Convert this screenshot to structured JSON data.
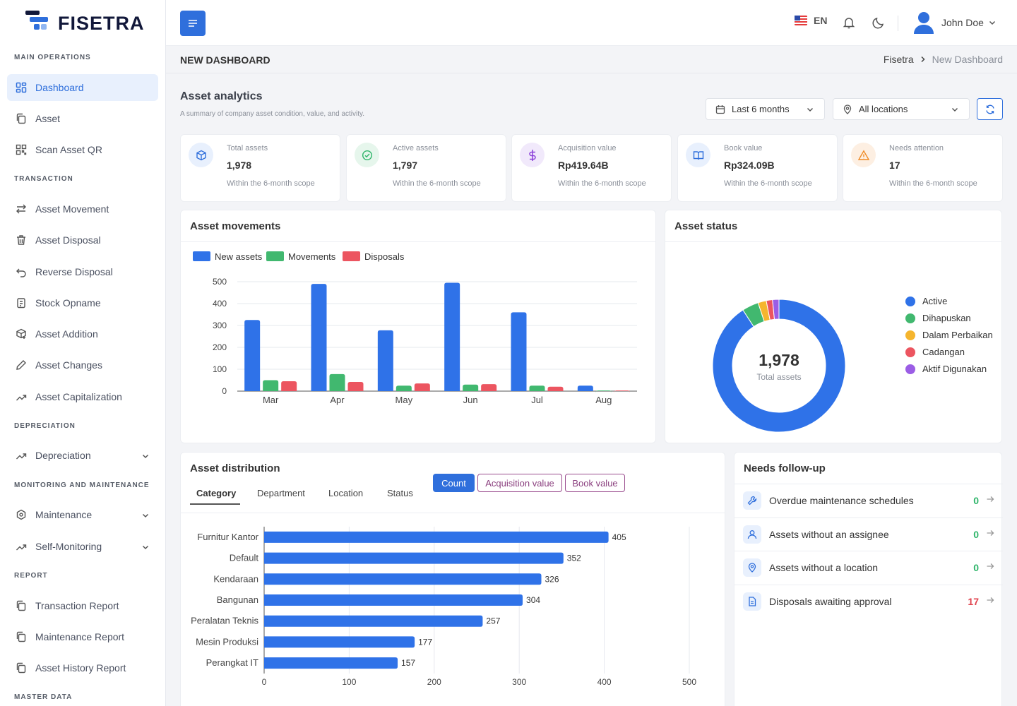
{
  "brand": {
    "name": "FISETRA"
  },
  "sidebar": {
    "sections": [
      {
        "title": "MAIN OPERATIONS"
      },
      {
        "title": "TRANSACTION"
      },
      {
        "title": "DEPRECIATION"
      },
      {
        "title": "MONITORING AND MAINTENANCE"
      },
      {
        "title": "REPORT"
      },
      {
        "title": "MASTER DATA"
      }
    ],
    "items": [
      {
        "label": "Dashboard",
        "icon": "grid-icon"
      },
      {
        "label": "Asset",
        "icon": "copy-icon"
      },
      {
        "label": "Scan Asset QR",
        "icon": "qr-icon"
      },
      {
        "label": "Asset Movement",
        "icon": "arrows-icon"
      },
      {
        "label": "Asset Disposal",
        "icon": "trash-icon"
      },
      {
        "label": "Reverse Disposal",
        "icon": "undo-icon"
      },
      {
        "label": "Stock Opname",
        "icon": "clipboard-icon"
      },
      {
        "label": "Asset Addition",
        "icon": "box-plus-icon"
      },
      {
        "label": "Asset Changes",
        "icon": "pencil-icon"
      },
      {
        "label": "Asset Capitalization",
        "icon": "trend-icon"
      },
      {
        "label": "Depreciation",
        "icon": "trend-icon"
      },
      {
        "label": "Maintenance",
        "icon": "hexagon-icon"
      },
      {
        "label": "Self-Monitoring",
        "icon": "trend-icon"
      },
      {
        "label": "Transaction Report",
        "icon": "copy-icon"
      },
      {
        "label": "Maintenance Report",
        "icon": "copy-icon"
      },
      {
        "label": "Asset History Report",
        "icon": "copy-icon"
      }
    ]
  },
  "topbar": {
    "language": "EN",
    "user_name": "John Doe"
  },
  "page_header": {
    "title": "NEW DASHBOARD",
    "crumb_root": "Fisetra",
    "crumb_current": "New Dashboard"
  },
  "analytics": {
    "title": "Asset analytics",
    "subtitle": "A summary of company asset condition, value, and activity.",
    "period_filter": "Last 6 months",
    "location_filter": "All locations"
  },
  "stats": [
    {
      "label": "Total assets",
      "value": "1,978",
      "sub": "Within the 6-month scope",
      "icon": "cube-icon",
      "color": "#2f6fdc",
      "bg": "#e8f0fd"
    },
    {
      "label": "Active assets",
      "value": "1,797",
      "sub": "Within the 6-month scope",
      "icon": "check-circle-icon",
      "color": "#2fb56a",
      "bg": "#e6f6ec"
    },
    {
      "label": "Acquisition value",
      "value": "Rp419.64B",
      "sub": "Within the 6-month scope",
      "icon": "dollar-icon",
      "color": "#8a3fd9",
      "bg": "#f1e9fb"
    },
    {
      "label": "Book value",
      "value": "Rp324.09B",
      "sub": "Within the 6-month scope",
      "icon": "book-icon",
      "color": "#2f6fdc",
      "bg": "#e8f0fd"
    },
    {
      "label": "Needs attention",
      "value": "17",
      "sub": "Within the 6-month scope",
      "icon": "warning-icon",
      "color": "#f08a24",
      "bg": "#fdefe2"
    }
  ],
  "movements": {
    "title": "Asset movements",
    "chart_data": {
      "type": "bar",
      "categories": [
        "Mar",
        "Apr",
        "May",
        "Jun",
        "Jul",
        "Aug"
      ],
      "series": [
        {
          "name": "New assets",
          "values": [
            325,
            490,
            278,
            495,
            360,
            25
          ],
          "color": "#2f72e8"
        },
        {
          "name": "Movements",
          "values": [
            50,
            78,
            25,
            30,
            25,
            3
          ],
          "color": "#41b86f"
        },
        {
          "name": "Disposals",
          "values": [
            45,
            42,
            35,
            32,
            20,
            3
          ],
          "color": "#ec5560"
        }
      ],
      "ylim": [
        0,
        500
      ],
      "yticks": [
        0,
        100,
        200,
        300,
        400,
        500
      ],
      "legend": "top-left"
    }
  },
  "status": {
    "title": "Asset status",
    "total": "1,978",
    "total_label": "Total assets",
    "chart_data": {
      "type": "pie",
      "labels": [
        "Active",
        "Dihapuskan",
        "Dalam Perbaikan",
        "Cadangan",
        "Aktif Digunakan"
      ],
      "values": [
        1797,
        80,
        40,
        30,
        31
      ],
      "colors": [
        "#2f72e8",
        "#41b86f",
        "#f5b52e",
        "#ec5560",
        "#9b5de5"
      ],
      "legend": "right"
    }
  },
  "distribution": {
    "title": "Asset distribution",
    "tabs": [
      "Category",
      "Department",
      "Location",
      "Status"
    ],
    "active_tab": "Category",
    "modes": [
      "Count",
      "Acquisition value",
      "Book value"
    ],
    "active_mode": "Count",
    "chart_data": {
      "type": "bar",
      "orientation": "horizontal",
      "categories": [
        "Furnitur Kantor",
        "Default",
        "Kendaraan",
        "Bangunan",
        "Peralatan Teknis",
        "Mesin Produksi",
        "Perangkat IT"
      ],
      "values": [
        405,
        352,
        326,
        304,
        257,
        177,
        157
      ],
      "xlim": [
        0,
        500
      ],
      "xticks": [
        0,
        100,
        200,
        300,
        400,
        500
      ],
      "color": "#2f72e8"
    }
  },
  "followup": {
    "title": "Needs follow-up",
    "items": [
      {
        "label": "Overdue maintenance schedules",
        "count": "0",
        "icon": "wrench-icon",
        "color": "#2fb56a"
      },
      {
        "label": "Assets without an assignee",
        "count": "0",
        "icon": "user-icon",
        "color": "#2fb56a"
      },
      {
        "label": "Assets without a location",
        "count": "0",
        "icon": "pin-icon",
        "color": "#2fb56a"
      },
      {
        "label": "Disposals awaiting approval",
        "count": "17",
        "icon": "document-icon",
        "color": "#e0434e"
      }
    ]
  }
}
